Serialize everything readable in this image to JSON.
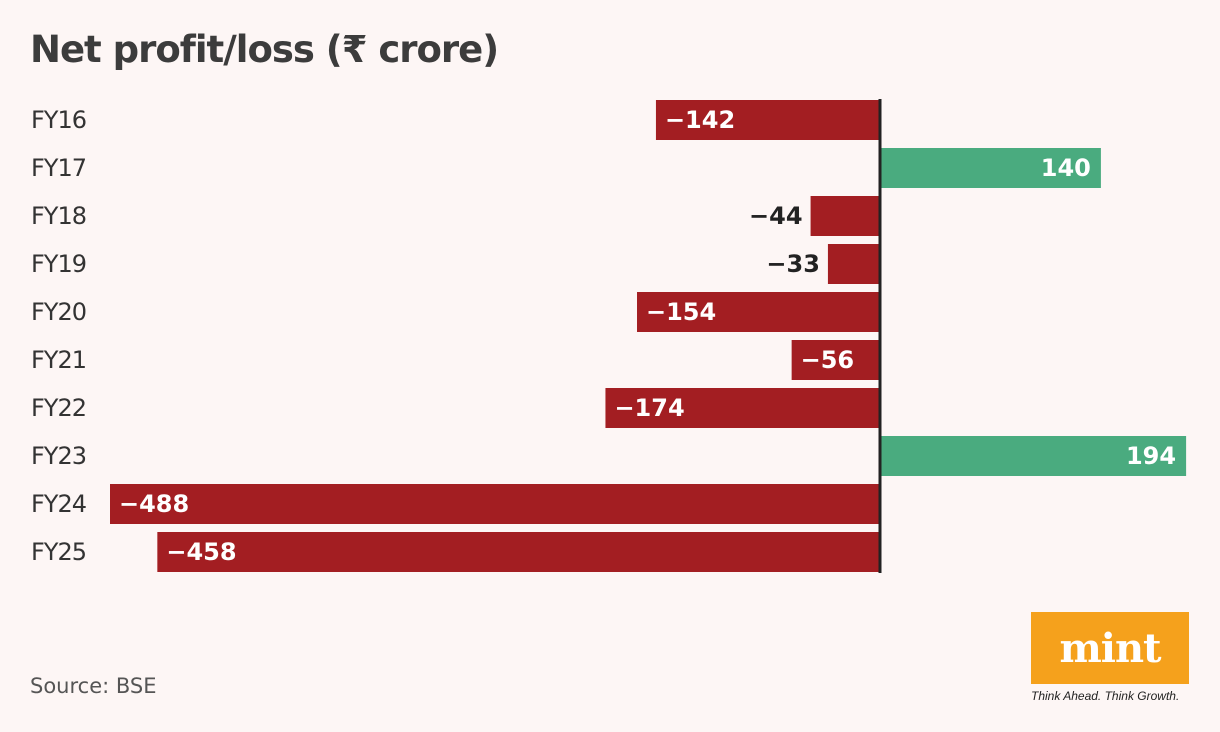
{
  "title": "Net profit/loss (₹ crore)",
  "source": "Source: BSE",
  "logo": {
    "name": "mint",
    "tagline": "Think Ahead. Think Growth."
  },
  "colors": {
    "negative": "#a31e22",
    "positive": "#4aab7f",
    "logo_bg": "#f5a11c",
    "axis": "#222222"
  },
  "chart_data": {
    "type": "bar",
    "orientation": "horizontal",
    "categories": [
      "FY16",
      "FY17",
      "FY18",
      "FY19",
      "FY20",
      "FY21",
      "FY22",
      "FY23",
      "FY24",
      "FY25"
    ],
    "values": [
      -142,
      140,
      -44,
      -33,
      -154,
      -56,
      -174,
      194,
      -488,
      -458
    ],
    "value_labels": [
      "−142",
      "140",
      "−44",
      "−33",
      "−154",
      "−56",
      "−174",
      "194",
      "−488",
      "−458"
    ],
    "title": "Net profit/loss (₹ crore)",
    "xlim": [
      -488,
      194
    ],
    "grid": false,
    "legend": "none"
  }
}
